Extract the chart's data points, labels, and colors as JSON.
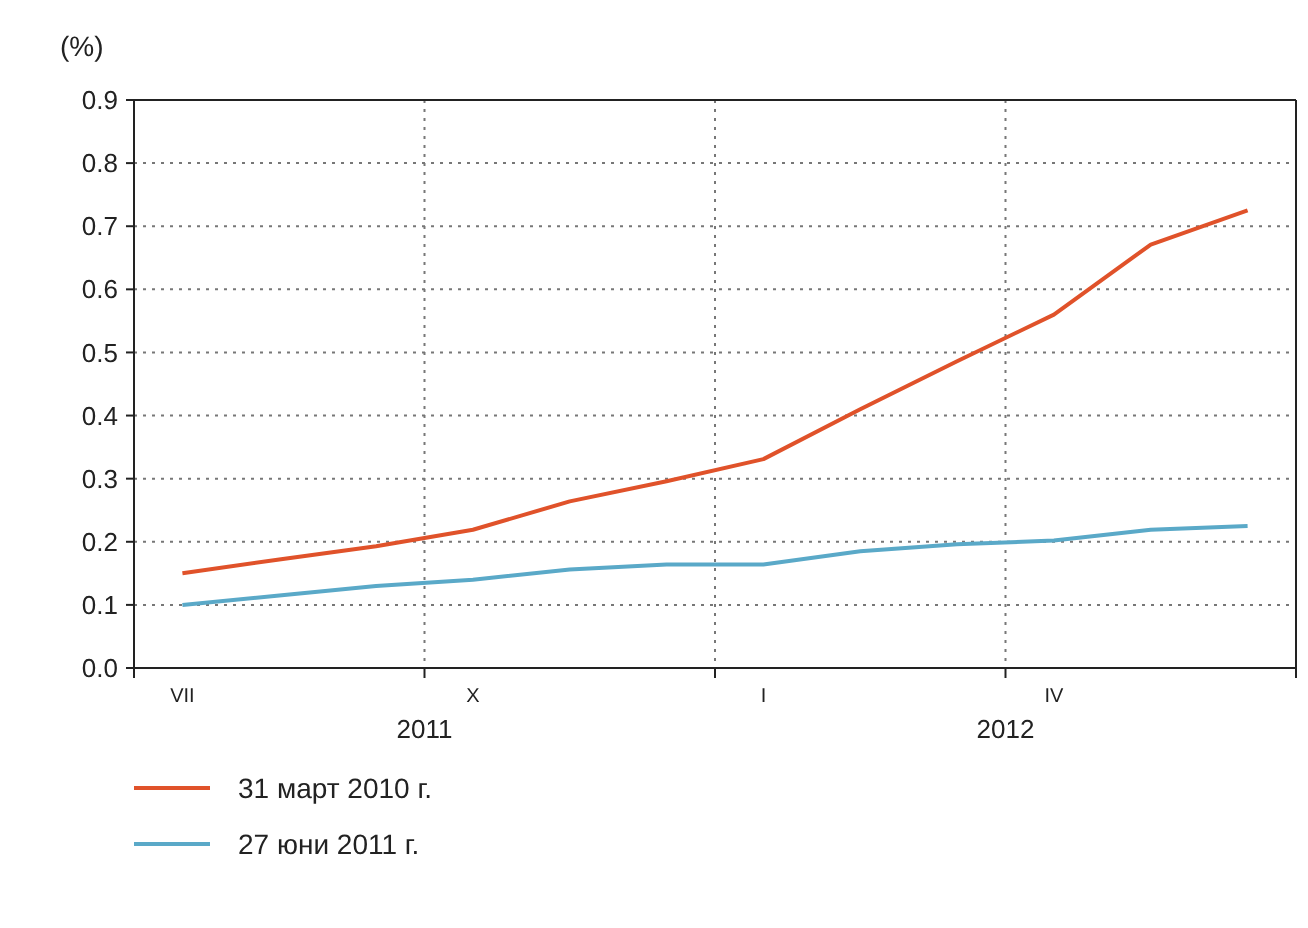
{
  "chart_data": {
    "type": "line",
    "ylabel": "(%)",
    "categories": [
      "VII",
      null,
      null,
      "X",
      null,
      null,
      "I",
      null,
      null,
      "IV",
      null,
      null
    ],
    "series": [
      {
        "name": "31 март 2010 г.",
        "color": "#e0522a",
        "values": [
          0.15,
          0.172,
          0.193,
          0.219,
          0.264,
          0.296,
          0.331,
          0.41,
          0.486,
          0.56,
          0.671,
          0.725
        ]
      },
      {
        "name": "27 юни 2011 г.",
        "color": "#5aa9c8",
        "values": [
          0.1,
          0.115,
          0.13,
          0.14,
          0.156,
          0.164,
          0.164,
          0.185,
          0.196,
          0.202,
          0.219,
          0.225
        ]
      }
    ],
    "ylim": [
      0,
      0.9
    ],
    "yticks": [
      {
        "value": 0,
        "label": "0.0"
      },
      0.1,
      0.2,
      0.3,
      0.4,
      0.5,
      0.6,
      0.7,
      0.8,
      0.9
    ],
    "annotations": [
      "2011",
      "2012"
    ],
    "grid": true,
    "legend": "bottom",
    "line_style": "solid",
    "marker": "none"
  }
}
